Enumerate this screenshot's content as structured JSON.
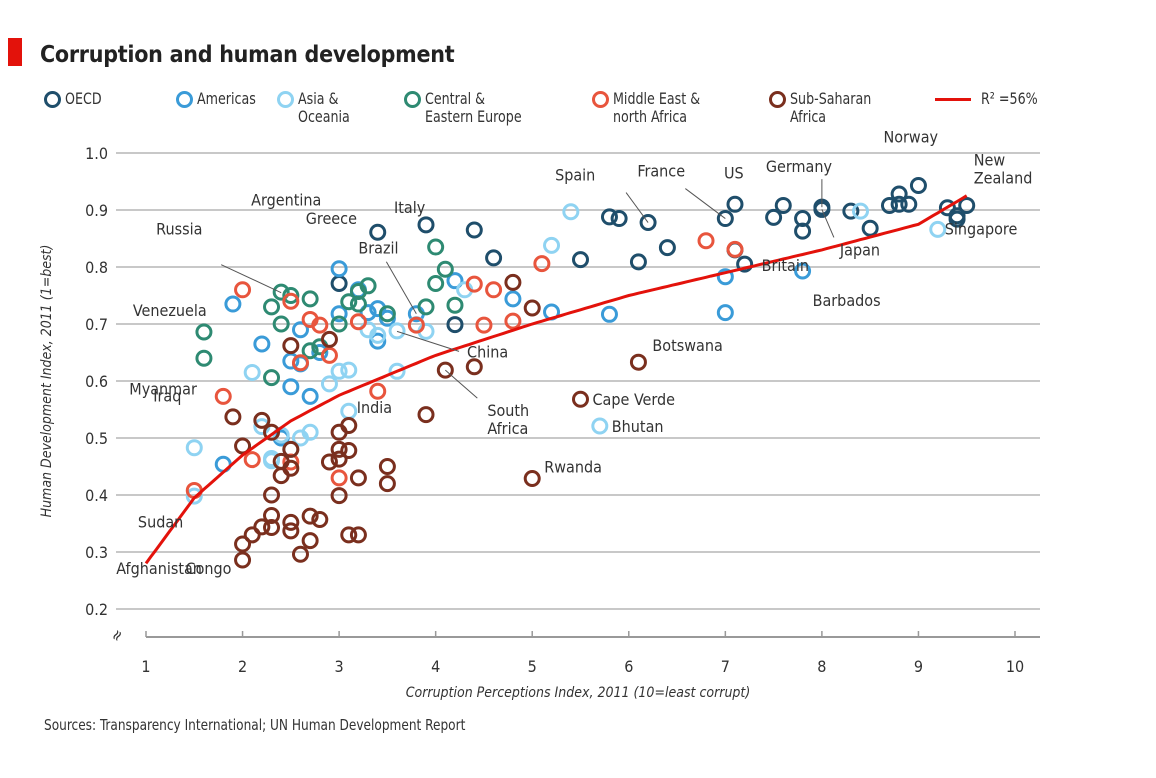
{
  "header": {
    "title": "Corruption and human development",
    "source": "Sources: Transparency International; UN Human Development Report"
  },
  "colors": {
    "accent_bar": "#e3120b",
    "OECD": "#1f4e6b",
    "Americas": "#3a9bd8",
    "Asia & Oceania": "#8fd3f2",
    "Central & Eastern Europe": "#2e8a72",
    "Middle East & north Africa": "#e8553d",
    "Sub-Saharan Africa": "#7a2f1e",
    "trend": "#e3120b",
    "grid": "#c8c8c8"
  },
  "legend": [
    {
      "key": "OECD",
      "label": "OECD"
    },
    {
      "key": "Americas",
      "label": "Americas"
    },
    {
      "key": "Asia & Oceania",
      "label": "Asia &\nOceania"
    },
    {
      "key": "Central & Eastern Europe",
      "label": "Central &\nEastern Europe"
    },
    {
      "key": "Middle East & north Africa",
      "label": "Middle East &\nnorth Africa"
    },
    {
      "key": "Sub-Saharan Africa",
      "label": "Sub-Saharan\nAfrica"
    },
    {
      "key": "trend",
      "label": "R² =56%",
      "line": true
    }
  ],
  "chart_data": {
    "type": "scatter",
    "title": "Corruption and human development",
    "xlabel": "Corruption Perceptions Index, 2011 (10=least corrupt)",
    "ylabel": "Human Development Index, 2011 (1=best)",
    "xlim": [
      1,
      10
    ],
    "ylim": [
      0.2,
      1.0
    ],
    "xticks": [
      "1",
      "2",
      "3",
      "4",
      "5",
      "6",
      "7",
      "8",
      "9",
      "10"
    ],
    "yticks": [
      "0.2",
      "0.3",
      "0.4",
      "0.5",
      "0.6",
      "0.7",
      "0.8",
      "0.9",
      "1.0"
    ],
    "grid": "horizontal",
    "legend_position": "top",
    "axis_break": "y",
    "trendline": {
      "label": "R² =56%",
      "r_squared": 0.56,
      "form": "logarithmic",
      "x": [
        1.0,
        1.5,
        2,
        2.5,
        3,
        4,
        5,
        6,
        7,
        8,
        9,
        9.5
      ],
      "y": [
        0.28,
        0.395,
        0.47,
        0.53,
        0.575,
        0.645,
        0.7,
        0.75,
        0.79,
        0.83,
        0.875,
        0.925
      ]
    },
    "series": [
      {
        "name": "OECD",
        "points": [
          [
            3.4,
            0.861
          ],
          [
            3.9,
            0.874
          ],
          [
            4.4,
            0.865
          ],
          [
            4.6,
            0.816
          ],
          [
            3.0,
            0.771
          ],
          [
            4.2,
            0.699
          ],
          [
            5.5,
            0.813
          ],
          [
            5.8,
            0.888
          ],
          [
            5.9,
            0.885
          ],
          [
            6.2,
            0.878
          ],
          [
            6.1,
            0.809
          ],
          [
            6.4,
            0.834
          ],
          [
            7.0,
            0.885
          ],
          [
            7.1,
            0.91
          ],
          [
            7.2,
            0.805
          ],
          [
            7.1,
            0.83
          ],
          [
            7.5,
            0.887
          ],
          [
            7.6,
            0.908
          ],
          [
            7.8,
            0.885
          ],
          [
            7.8,
            0.863
          ],
          [
            8.0,
            0.905
          ],
          [
            8.0,
            0.901
          ],
          [
            8.3,
            0.898
          ],
          [
            8.5,
            0.868
          ],
          [
            8.7,
            0.908
          ],
          [
            8.8,
            0.91
          ],
          [
            8.8,
            0.928
          ],
          [
            9.0,
            0.943
          ],
          [
            8.9,
            0.91
          ],
          [
            9.3,
            0.904
          ],
          [
            9.4,
            0.884
          ],
          [
            9.5,
            0.908
          ],
          [
            9.4,
            0.89
          ]
        ]
      },
      {
        "name": "Americas",
        "points": [
          [
            1.9,
            0.735
          ],
          [
            2.2,
            0.665
          ],
          [
            2.5,
            0.59
          ],
          [
            2.6,
            0.69
          ],
          [
            2.7,
            0.573
          ],
          [
            3.0,
            0.797
          ],
          [
            3.0,
            0.718
          ],
          [
            3.3,
            0.72
          ],
          [
            3.4,
            0.727
          ],
          [
            3.5,
            0.71
          ],
          [
            3.2,
            0.76
          ],
          [
            3.4,
            0.67
          ],
          [
            3.8,
            0.718
          ],
          [
            2.6,
            0.63
          ],
          [
            2.8,
            0.65
          ],
          [
            4.8,
            0.744
          ],
          [
            5.2,
            0.721
          ],
          [
            4.2,
            0.776
          ],
          [
            5.8,
            0.717
          ],
          [
            7.0,
            0.72
          ],
          [
            7.0,
            0.783
          ],
          [
            7.8,
            0.793
          ],
          [
            1.8,
            0.454
          ],
          [
            2.4,
            0.5
          ],
          [
            2.5,
            0.635
          ]
        ]
      },
      {
        "name": "Asia & Oceania",
        "points": [
          [
            1.5,
            0.483
          ],
          [
            1.5,
            0.398
          ],
          [
            2.1,
            0.615
          ],
          [
            2.3,
            0.46
          ],
          [
            2.2,
            0.52
          ],
          [
            2.4,
            0.505
          ],
          [
            2.6,
            0.5
          ],
          [
            2.7,
            0.51
          ],
          [
            2.9,
            0.595
          ],
          [
            3.0,
            0.617
          ],
          [
            3.1,
            0.619
          ],
          [
            3.1,
            0.547
          ],
          [
            3.6,
            0.617
          ],
          [
            3.3,
            0.69
          ],
          [
            3.4,
            0.68
          ],
          [
            3.6,
            0.688
          ],
          [
            3.9,
            0.687
          ],
          [
            3.8,
            0.699
          ],
          [
            4.3,
            0.76
          ],
          [
            5.2,
            0.838
          ],
          [
            5.4,
            0.897
          ],
          [
            5.7,
            0.521
          ],
          [
            8.4,
            0.898
          ],
          [
            9.2,
            0.866
          ],
          [
            2.3,
            0.464
          ],
          [
            2.5,
            0.48
          ]
        ]
      },
      {
        "name": "Central & Eastern Europe",
        "points": [
          [
            1.6,
            0.686
          ],
          [
            1.6,
            0.64
          ],
          [
            2.3,
            0.606
          ],
          [
            2.3,
            0.73
          ],
          [
            2.4,
            0.7
          ],
          [
            2.4,
            0.756
          ],
          [
            2.5,
            0.75
          ],
          [
            2.7,
            0.744
          ],
          [
            2.7,
            0.653
          ],
          [
            2.8,
            0.66
          ],
          [
            3.1,
            0.739
          ],
          [
            3.2,
            0.757
          ],
          [
            3.3,
            0.767
          ],
          [
            3.2,
            0.735
          ],
          [
            3.0,
            0.7
          ],
          [
            3.5,
            0.718
          ],
          [
            3.9,
            0.73
          ],
          [
            4.0,
            0.771
          ],
          [
            4.1,
            0.796
          ],
          [
            4.0,
            0.835
          ],
          [
            4.2,
            0.733
          ]
        ]
      },
      {
        "name": "Middle East & north Africa",
        "points": [
          [
            1.8,
            0.573
          ],
          [
            2.0,
            0.76
          ],
          [
            2.1,
            0.462
          ],
          [
            2.5,
            0.74
          ],
          [
            2.6,
            0.632
          ],
          [
            2.7,
            0.708
          ],
          [
            2.8,
            0.698
          ],
          [
            2.9,
            0.645
          ],
          [
            3.0,
            0.43
          ],
          [
            3.2,
            0.704
          ],
          [
            3.4,
            0.582
          ],
          [
            3.8,
            0.698
          ],
          [
            4.4,
            0.77
          ],
          [
            4.5,
            0.698
          ],
          [
            4.6,
            0.76
          ],
          [
            4.8,
            0.705
          ],
          [
            5.1,
            0.806
          ],
          [
            6.8,
            0.846
          ],
          [
            7.1,
            0.831
          ],
          [
            1.5,
            0.408
          ],
          [
            2.5,
            0.458
          ]
        ]
      },
      {
        "name": "Sub-Saharan Africa",
        "points": [
          [
            2.0,
            0.286
          ],
          [
            2.0,
            0.314
          ],
          [
            2.1,
            0.33
          ],
          [
            2.2,
            0.344
          ],
          [
            2.3,
            0.343
          ],
          [
            2.3,
            0.364
          ],
          [
            2.3,
            0.4
          ],
          [
            2.0,
            0.486
          ],
          [
            1.9,
            0.537
          ],
          [
            2.2,
            0.531
          ],
          [
            2.3,
            0.51
          ],
          [
            2.4,
            0.459
          ],
          [
            2.4,
            0.434
          ],
          [
            2.5,
            0.48
          ],
          [
            2.5,
            0.447
          ],
          [
            2.5,
            0.352
          ],
          [
            2.5,
            0.337
          ],
          [
            2.6,
            0.296
          ],
          [
            2.7,
            0.363
          ],
          [
            2.7,
            0.32
          ],
          [
            2.8,
            0.357
          ],
          [
            2.9,
            0.458
          ],
          [
            3.0,
            0.463
          ],
          [
            3.0,
            0.399
          ],
          [
            3.0,
            0.51
          ],
          [
            3.1,
            0.522
          ],
          [
            3.1,
            0.478
          ],
          [
            3.0,
            0.48
          ],
          [
            3.1,
            0.33
          ],
          [
            3.2,
            0.33
          ],
          [
            3.2,
            0.43
          ],
          [
            3.5,
            0.45
          ],
          [
            3.5,
            0.42
          ],
          [
            2.9,
            0.673
          ],
          [
            2.5,
            0.662
          ],
          [
            3.9,
            0.541
          ],
          [
            4.1,
            0.619
          ],
          [
            4.4,
            0.625
          ],
          [
            4.8,
            0.773
          ],
          [
            5.0,
            0.728
          ],
          [
            5.0,
            0.429
          ],
          [
            5.5,
            0.568
          ],
          [
            6.1,
            0.633
          ]
        ]
      }
    ],
    "annotations": [
      {
        "text": "Venezuela",
        "x": 1.9,
        "y": 0.735
      },
      {
        "text": "Russia",
        "x": 2.4,
        "y": 0.755
      },
      {
        "text": "Argentina",
        "x": 3.0,
        "y": 0.797
      },
      {
        "text": "Greece",
        "x": 3.4,
        "y": 0.861
      },
      {
        "text": "Italy",
        "x": 3.9,
        "y": 0.874
      },
      {
        "text": "Brazil",
        "x": 3.8,
        "y": 0.718
      },
      {
        "text": "China",
        "x": 3.6,
        "y": 0.687
      },
      {
        "text": "South\nAfrica",
        "x": 4.1,
        "y": 0.619
      },
      {
        "text": "India",
        "x": 3.1,
        "y": 0.547
      },
      {
        "text": "Iraq",
        "x": 1.8,
        "y": 0.573
      },
      {
        "text": "Myanmar",
        "x": 1.5,
        "y": 0.483
      },
      {
        "text": "Sudan",
        "x": 1.6,
        "y": 0.408
      },
      {
        "text": "Afghanistan",
        "x": 1.5,
        "y": 0.398
      },
      {
        "text": "Congo",
        "x": 2.0,
        "y": 0.286
      },
      {
        "text": "Spain",
        "x": 6.2,
        "y": 0.878
      },
      {
        "text": "France",
        "x": 7.0,
        "y": 0.885
      },
      {
        "text": "US",
        "x": 7.1,
        "y": 0.91
      },
      {
        "text": "Germany",
        "x": 8.0,
        "y": 0.905
      },
      {
        "text": "Britain",
        "x": 7.8,
        "y": 0.863
      },
      {
        "text": "Japan",
        "x": 8.0,
        "y": 0.901
      },
      {
        "text": "Barbados",
        "x": 7.8,
        "y": 0.793
      },
      {
        "text": "Norway",
        "x": 9.0,
        "y": 0.943
      },
      {
        "text": "New\nZealand",
        "x": 9.5,
        "y": 0.908
      },
      {
        "text": "Singapore",
        "x": 9.2,
        "y": 0.866
      },
      {
        "text": "Botswana",
        "x": 6.1,
        "y": 0.633
      },
      {
        "text": "Cape Verde",
        "x": 5.5,
        "y": 0.568
      },
      {
        "text": "Bhutan",
        "x": 5.7,
        "y": 0.521
      },
      {
        "text": "Rwanda",
        "x": 5.0,
        "y": 0.429
      }
    ]
  }
}
